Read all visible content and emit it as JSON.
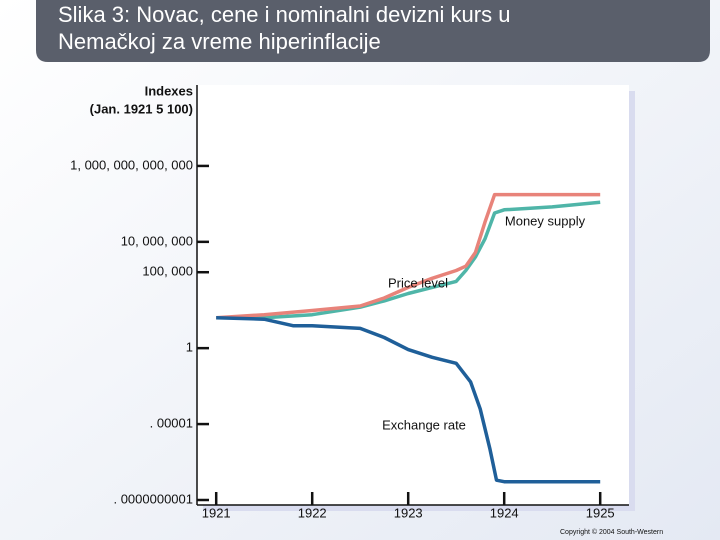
{
  "chart_data": {
    "type": "line",
    "title": [
      "Slika 3: Novac, cene i nominalni devizni kurs u",
      "Nemačkoj za vreme hiperinflacije"
    ],
    "y_label": [
      "Indexes",
      "(Jan. 1921 5 100)"
    ],
    "log_y": true,
    "ylim": [
      1e-10,
      1e+17
    ],
    "yticks": [
      {
        "value": 1000000000000.0,
        "label": "1, 000, 000, 000, 000"
      },
      {
        "value": 10000000.0,
        "label": "10, 000, 000"
      },
      {
        "value": 100000.0,
        "label": "100, 000"
      },
      1,
      {
        "value": 1e-05,
        "label": ". 00001"
      },
      {
        "value": 1e-10,
        "label": ". 0000000001"
      }
    ],
    "xlim": [
      1920.8,
      1925.3
    ],
    "xticks": [
      1921,
      1922,
      1923,
      1924,
      1925
    ],
    "series": [
      {
        "name": "Money supply",
        "color": "#4fb5a8",
        "x": [
          1921,
          1921.5,
          1922,
          1922.5,
          1922.75,
          1923,
          1923.25,
          1923.5,
          1923.6,
          1923.7,
          1923.8,
          1923.9,
          1924,
          1924.5,
          1925
        ],
        "values": [
          100,
          100,
          160,
          500,
          1300,
          4000,
          10000,
          25000,
          130000,
          1000000,
          16000000,
          800000000,
          1300000000,
          2000000000,
          4000000000
        ]
      },
      {
        "name": "Price level",
        "color": "#e8837a",
        "x": [
          1921,
          1921.5,
          1922,
          1922.5,
          1922.75,
          1923,
          1923.25,
          1923.5,
          1923.6,
          1923.7,
          1923.8,
          1923.9,
          1924,
          1924.5,
          1925
        ],
        "values": [
          100,
          160,
          300,
          600,
          2000,
          10000,
          40000,
          130000,
          250000,
          2000000,
          200000000,
          13000000000,
          13000000000,
          13000000000,
          13000000000
        ]
      },
      {
        "name": "Exchange rate",
        "color": "#1f5f99",
        "x": [
          1921,
          1921.5,
          1921.8,
          1922,
          1922.5,
          1922.75,
          1923,
          1923.25,
          1923.5,
          1923.65,
          1923.75,
          1923.85,
          1923.92,
          1924,
          1925
        ],
        "values": [
          100,
          80,
          30,
          30,
          20,
          5,
          0.8,
          0.25,
          0.1,
          0.006,
          0.0001,
          2.5e-07,
          2e-09,
          1.6e-09,
          1.6e-09
        ]
      }
    ],
    "copyright": "Copyright © 2004 South-Western"
  }
}
